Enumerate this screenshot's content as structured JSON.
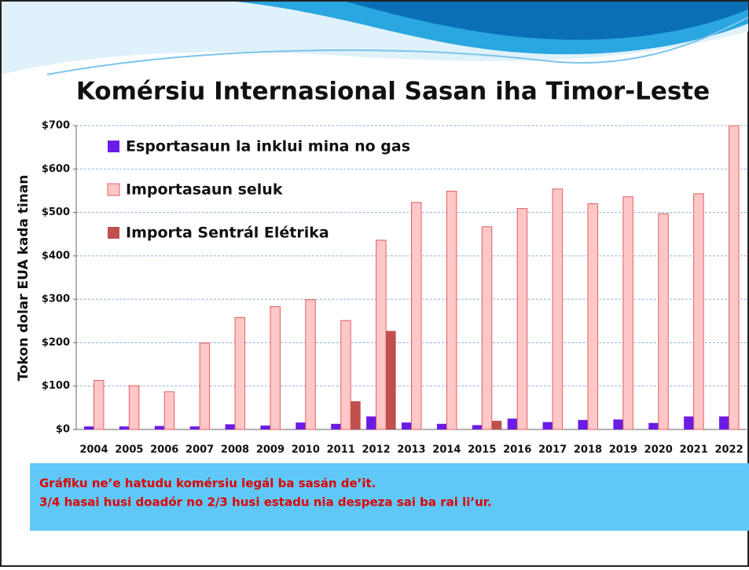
{
  "chart_data": {
    "type": "bar",
    "title": "Komérsiu Internasional Sasan iha Timor-Leste",
    "y_label": "Tokon dolar EUA kada tinan",
    "categories": [
      "2004",
      "2005",
      "2006",
      "2007",
      "2008",
      "2009",
      "2010",
      "2011",
      "2012",
      "2013",
      "2014",
      "2015",
      "2016",
      "2017",
      "2018",
      "2019",
      "2020",
      "2021",
      "2022"
    ],
    "series": [
      {
        "name": "Esportasaun la inklui mina no gas",
        "color": "#6a1be6",
        "values": [
          7,
          7,
          8,
          7,
          12,
          9,
          16,
          13,
          30,
          16,
          13,
          10,
          25,
          17,
          22,
          23,
          15,
          30,
          30
        ]
      },
      {
        "name": "Importasaun seluk",
        "color": "#ffc7c7",
        "values": [
          113,
          101,
          87,
          199,
          258,
          283,
          299,
          251,
          436,
          523,
          549,
          467,
          509,
          554,
          520,
          536,
          497,
          543,
          700
        ]
      },
      {
        "name": "Importa Sentrál Elétrika",
        "color": "#c0504d",
        "values": [
          null,
          null,
          null,
          null,
          null,
          null,
          null,
          65,
          227,
          null,
          null,
          20,
          null,
          null,
          null,
          null,
          null,
          null,
          null
        ]
      }
    ],
    "ylim": [
      0,
      700
    ],
    "yticks": [
      {
        "value": 0,
        "label": "$0"
      },
      {
        "value": 100,
        "label": "$100"
      },
      {
        "value": 200,
        "label": "$200"
      },
      {
        "value": 300,
        "label": "$300"
      },
      {
        "value": 400,
        "label": "$400"
      },
      {
        "value": 500,
        "label": "$500"
      },
      {
        "value": 600,
        "label": "$600"
      },
      {
        "value": 700,
        "label": "$700"
      }
    ],
    "grid": true
  },
  "note": [
    "Gráfiku ne’e hatudu komérsiu legál ba sasán de’it.",
    "3/4 hasai husi doadór no 2/3 husi estadu nia despeza sai ba rai li’ur."
  ]
}
